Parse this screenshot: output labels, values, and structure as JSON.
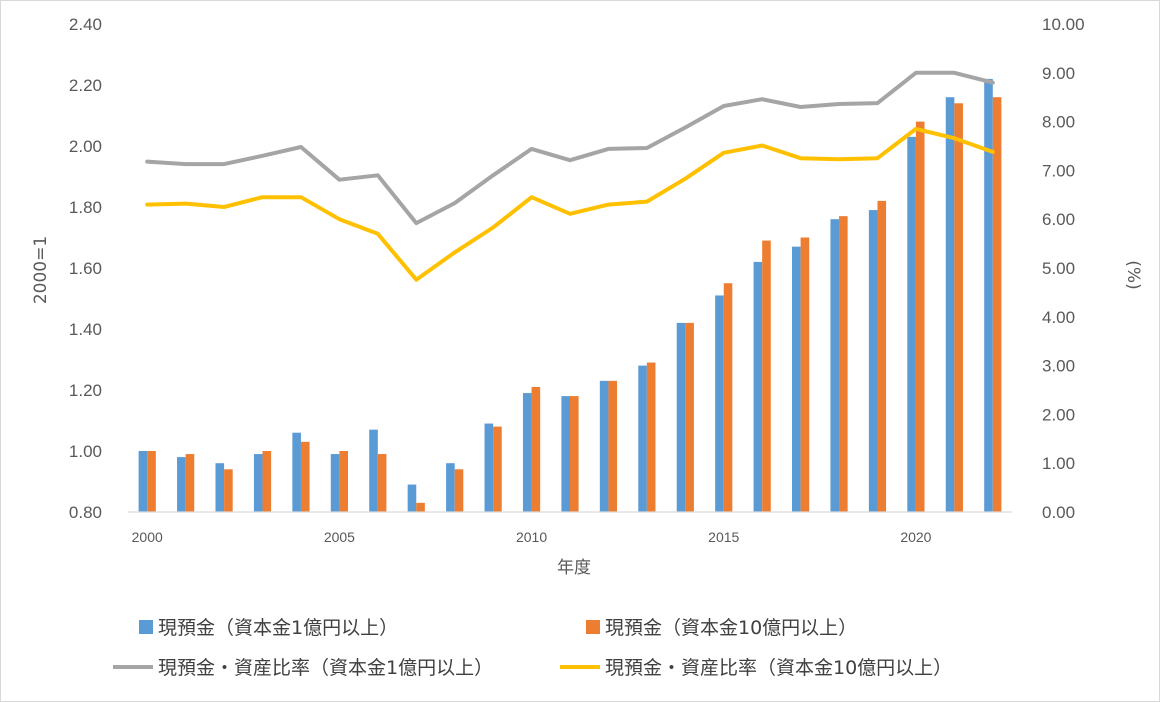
{
  "chart_data": {
    "type": "bar",
    "title": "",
    "xlabel": "年度",
    "ylabel": "2000=1",
    "y2label": "(%)",
    "ylim": [
      0.8,
      2.4
    ],
    "y2lim": [
      0,
      10
    ],
    "yticks": [
      "0.80",
      "1.00",
      "1.20",
      "1.40",
      "1.60",
      "1.80",
      "2.00",
      "2.20",
      "2.40"
    ],
    "y2ticks": [
      "0.00",
      "1.00",
      "2.00",
      "3.00",
      "4.00",
      "5.00",
      "6.00",
      "7.00",
      "8.00",
      "9.00",
      "10.00"
    ],
    "xticks": [
      "2000",
      "2005",
      "2010",
      "2015",
      "2020"
    ],
    "grid": false,
    "legend_position": "bottom",
    "categories": [
      2000,
      2001,
      2002,
      2003,
      2004,
      2005,
      2006,
      2007,
      2008,
      2009,
      2010,
      2011,
      2012,
      2013,
      2014,
      2015,
      2016,
      2017,
      2018,
      2019,
      2020,
      2021,
      2022
    ],
    "series": [
      {
        "name": "現預金（資本金1億円以上）",
        "type": "bar",
        "axis": "left",
        "color": "#5b9bd5",
        "values": [
          1.0,
          0.98,
          0.96,
          0.99,
          1.06,
          0.99,
          1.07,
          0.89,
          0.96,
          1.09,
          1.19,
          1.18,
          1.23,
          1.28,
          1.42,
          1.51,
          1.62,
          1.67,
          1.76,
          1.79,
          2.03,
          2.16,
          2.22
        ]
      },
      {
        "name": "現預金（資本金10億円以上）",
        "type": "bar",
        "axis": "left",
        "color": "#ed7d31",
        "values": [
          1.0,
          0.99,
          0.94,
          1.0,
          1.03,
          1.0,
          0.99,
          0.83,
          0.94,
          1.08,
          1.21,
          1.18,
          1.23,
          1.29,
          1.42,
          1.55,
          1.69,
          1.7,
          1.77,
          1.82,
          2.08,
          2.14,
          2.16
        ]
      },
      {
        "name": "現預金・資産比率（資本金1億円以上）",
        "type": "line",
        "axis": "right",
        "color": "#a5a5a5",
        "values": [
          7.18,
          7.13,
          7.13,
          7.3,
          7.48,
          6.81,
          6.9,
          5.92,
          6.33,
          6.9,
          7.44,
          7.21,
          7.44,
          7.46,
          7.88,
          8.32,
          8.46,
          8.3,
          8.36,
          8.38,
          9.0,
          9.0,
          8.8
        ]
      },
      {
        "name": "現預金・資産比率（資本金10億円以上）",
        "type": "line",
        "axis": "right",
        "color": "#ffc000",
        "values": [
          6.3,
          6.32,
          6.25,
          6.45,
          6.45,
          6.0,
          5.7,
          4.76,
          5.32,
          5.83,
          6.45,
          6.11,
          6.3,
          6.36,
          6.83,
          7.36,
          7.51,
          7.25,
          7.23,
          7.25,
          7.85,
          7.66,
          7.38
        ]
      }
    ]
  }
}
